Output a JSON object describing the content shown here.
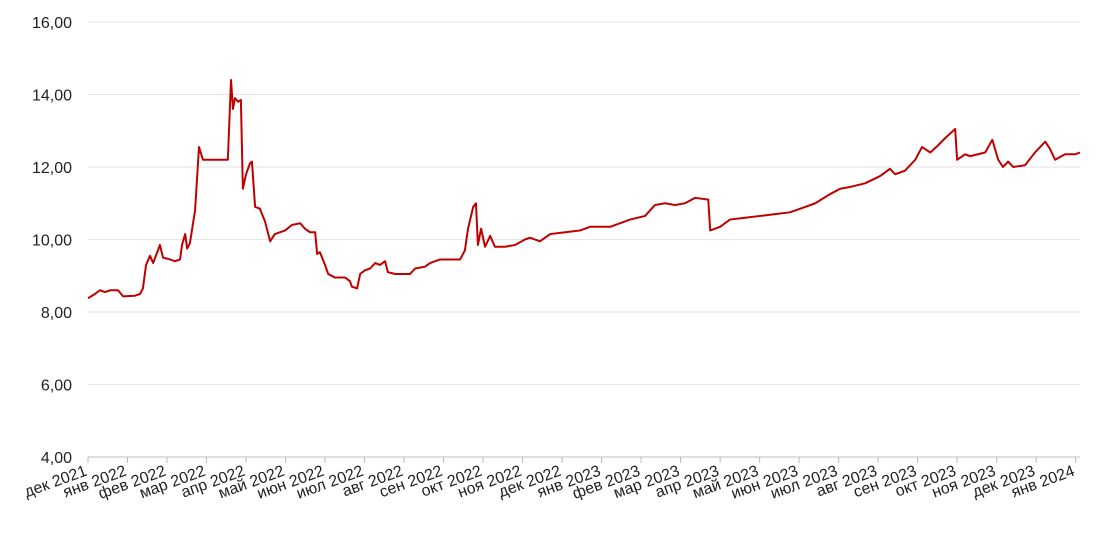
{
  "chart_data": {
    "type": "line",
    "grid": true,
    "series": [
      {
        "color": "#c00000",
        "x": [
          0,
          0.18,
          0.3,
          0.43,
          0.56,
          0.76,
          0.89,
          1.19,
          1.32,
          1.39,
          1.47,
          1.57,
          1.65,
          1.77,
          1.82,
          1.9,
          2.08,
          2.2,
          2.33,
          2.38,
          2.46,
          2.51,
          2.58,
          2.71,
          2.81,
          2.91,
          3.54,
          3.62,
          3.67,
          3.72,
          3.8,
          3.87,
          3.92,
          4.0,
          4.1,
          4.15,
          4.23,
          4.35,
          4.48,
          4.61,
          4.73,
          4.99,
          5.16,
          5.37,
          5.49,
          5.62,
          5.75,
          5.8,
          5.87,
          6.0,
          6.08,
          6.25,
          6.51,
          6.63,
          6.68,
          6.81,
          6.89,
          7.01,
          7.14,
          7.27,
          7.39,
          7.52,
          7.59,
          7.77,
          8.15,
          8.28,
          8.53,
          8.66,
          8.91,
          9.16,
          9.42,
          9.54,
          9.62,
          9.75,
          9.82,
          9.87,
          9.95,
          10.05,
          10.18,
          10.3,
          10.56,
          10.81,
          11.06,
          11.19,
          11.44,
          11.7,
          12.08,
          12.46,
          12.71,
          12.96,
          13.22,
          13.47,
          13.72,
          14.1,
          14.35,
          14.61,
          14.86,
          15.11,
          15.37,
          15.7,
          15.75,
          16.0,
          16.25,
          16.63,
          17.01,
          17.39,
          17.77,
          18.03,
          18.41,
          18.78,
          19.04,
          19.29,
          19.67,
          20.05,
          20.3,
          20.43,
          20.68,
          20.94,
          21.11,
          21.32,
          21.52,
          21.7,
          21.95,
          22.0,
          22.2,
          22.33,
          22.71,
          22.89,
          23.04,
          23.16,
          23.29,
          23.42,
          23.72,
          23.97,
          24.23,
          24.35,
          24.48,
          24.73,
          24.99,
          25.11
        ],
        "values": [
          8.38,
          8.5,
          8.6,
          8.55,
          8.6,
          8.6,
          8.43,
          8.45,
          8.5,
          8.65,
          9.3,
          9.55,
          9.35,
          9.7,
          9.85,
          9.5,
          9.45,
          9.4,
          9.45,
          9.85,
          10.15,
          9.75,
          9.9,
          10.8,
          12.55,
          12.2,
          12.2,
          14.4,
          13.6,
          13.9,
          13.8,
          13.85,
          11.4,
          11.8,
          12.1,
          12.15,
          10.9,
          10.85,
          10.5,
          9.95,
          10.15,
          10.25,
          10.4,
          10.45,
          10.3,
          10.2,
          10.2,
          9.6,
          9.65,
          9.3,
          9.05,
          8.95,
          8.95,
          8.85,
          8.7,
          8.65,
          9.05,
          9.15,
          9.2,
          9.35,
          9.3,
          9.4,
          9.1,
          9.05,
          9.05,
          9.2,
          9.25,
          9.35,
          9.45,
          9.45,
          9.45,
          9.7,
          10.3,
          10.9,
          11.0,
          9.85,
          10.3,
          9.8,
          10.1,
          9.8,
          9.8,
          9.85,
          10.0,
          10.05,
          9.95,
          10.15,
          10.2,
          10.25,
          10.35,
          10.35,
          10.35,
          10.45,
          10.55,
          10.65,
          10.95,
          11.0,
          10.95,
          11.0,
          11.15,
          11.1,
          10.25,
          10.35,
          10.55,
          10.6,
          10.65,
          10.7,
          10.75,
          10.85,
          11.0,
          11.25,
          11.4,
          11.45,
          11.55,
          11.75,
          11.95,
          11.8,
          11.9,
          12.2,
          12.55,
          12.4,
          12.6,
          12.8,
          13.05,
          12.2,
          12.35,
          12.3,
          12.4,
          12.75,
          12.2,
          12.0,
          12.15,
          12.0,
          12.05,
          12.4,
          12.7,
          12.5,
          12.2,
          12.35,
          12.35,
          12.4
        ]
      }
    ],
    "xlim": [
      0,
      25.11
    ],
    "xticks": [
      {
        "value": 0,
        "label": "дек 2021"
      },
      {
        "value": 1,
        "label": "янв 2022"
      },
      {
        "value": 2,
        "label": "фев 2022"
      },
      {
        "value": 3,
        "label": "мар 2022"
      },
      {
        "value": 4,
        "label": "апр 2022"
      },
      {
        "value": 5,
        "label": "май 2022"
      },
      {
        "value": 6,
        "label": "июн 2022"
      },
      {
        "value": 7,
        "label": "июл 2022"
      },
      {
        "value": 8,
        "label": "авг 2022"
      },
      {
        "value": 9,
        "label": "сен 2022"
      },
      {
        "value": 10,
        "label": "окт 2022"
      },
      {
        "value": 11,
        "label": "ноя 2022"
      },
      {
        "value": 12,
        "label": "дек 2022"
      },
      {
        "value": 13,
        "label": "янв 2023"
      },
      {
        "value": 14,
        "label": "фев 2023"
      },
      {
        "value": 15,
        "label": "мар 2023"
      },
      {
        "value": 16,
        "label": "апр 2023"
      },
      {
        "value": 17,
        "label": "май 2023"
      },
      {
        "value": 18,
        "label": "июн 2023"
      },
      {
        "value": 19,
        "label": "июл 2023"
      },
      {
        "value": 20,
        "label": "авг 2023"
      },
      {
        "value": 21,
        "label": "сен 2023"
      },
      {
        "value": 22,
        "label": "окт 2023"
      },
      {
        "value": 23,
        "label": "ноя 2023"
      },
      {
        "value": 24,
        "label": "дек 2023"
      },
      {
        "value": 25,
        "label": "янв 2024"
      }
    ],
    "ylim": [
      4,
      16
    ],
    "yticks": [
      {
        "value": 4,
        "label": "4,00"
      },
      {
        "value": 6,
        "label": "6,00"
      },
      {
        "value": 8,
        "label": "8,00"
      },
      {
        "value": 10,
        "label": "10,00"
      },
      {
        "value": 12,
        "label": "12,00"
      },
      {
        "value": 14,
        "label": "14,00"
      },
      {
        "value": 16,
        "label": "16,00"
      }
    ]
  }
}
